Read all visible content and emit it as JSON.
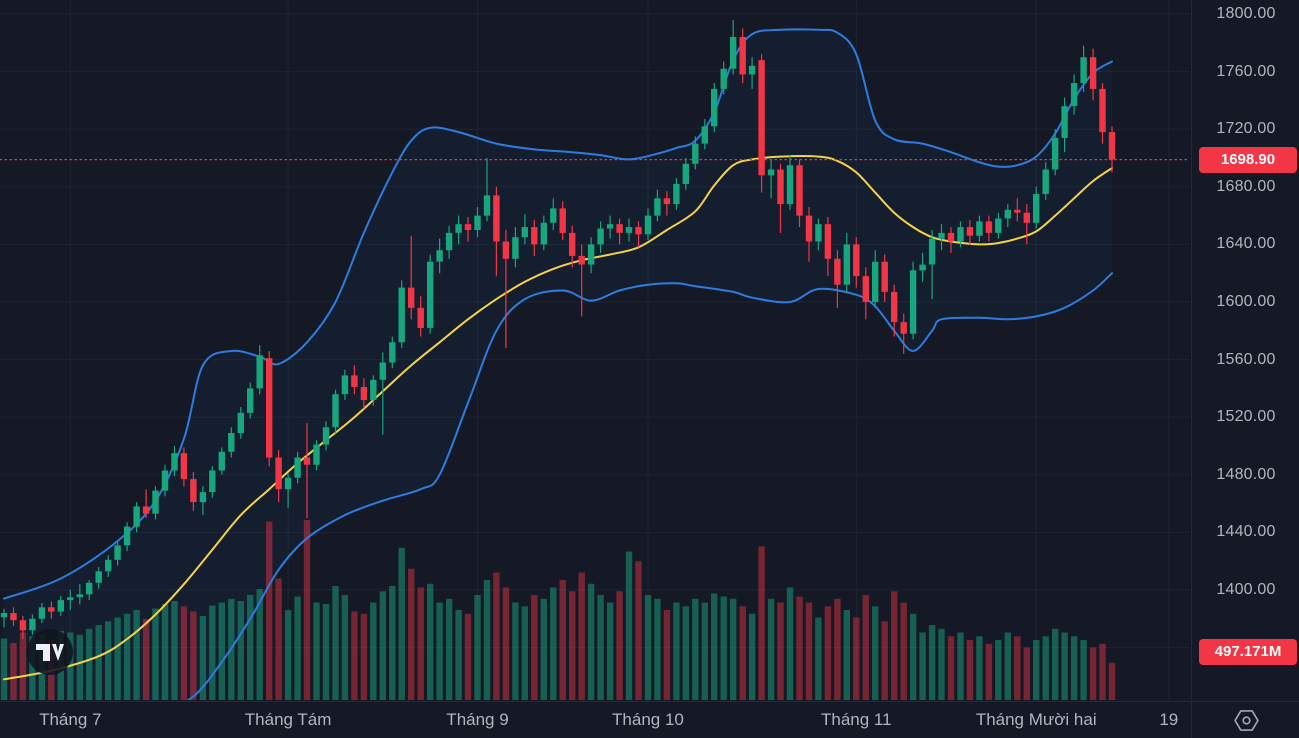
{
  "colors": {
    "background": "#141925",
    "grid": "#1d2432",
    "up": "#17a67d",
    "down": "#f23645",
    "vol_up": "rgba(23,166,125,0.5)",
    "vol_down": "rgba(242,54,69,0.45)",
    "band_line": "#2d7de1",
    "band_fill": "rgba(45,125,225,0.055)",
    "mid_line": "#f6d24b",
    "last_price_line": "#f23645",
    "axis_text": "#b2b5be",
    "badge_bg": "#f23645",
    "badge_text": "#ffffff"
  },
  "price_axis": {
    "ticks": [
      "1800.00",
      "1760.00",
      "1720.00",
      "1680.00",
      "1640.00",
      "1600.00",
      "1560.00",
      "1520.00",
      "1480.00",
      "1440.00",
      "1400.00",
      "1360.00"
    ],
    "last_price_badge": "1698.90",
    "volume_badge": "497.171M"
  },
  "time_axis": {
    "labels": [
      "Tháng 7",
      "Tháng Tám",
      "Tháng 9",
      "Tháng 10",
      "Tháng 11",
      "Tháng Mười hai",
      "19"
    ]
  },
  "logo": {
    "name": "TradingView"
  },
  "chart_data": {
    "type": "candlestick",
    "title": "",
    "ylabel": "price",
    "ylim": [
      1325,
      1810
    ],
    "y_ticks": [
      1800,
      1760,
      1720,
      1680,
      1640,
      1600,
      1560,
      1520,
      1480,
      1440,
      1400,
      1360
    ],
    "grid": true,
    "last_price": 1698.9,
    "total_volume_label": "497.171M",
    "months": [
      {
        "label": "Tháng 7",
        "bar": 7
      },
      {
        "label": "Tháng Tám",
        "bar": 30
      },
      {
        "label": "Tháng 9",
        "bar": 50
      },
      {
        "label": "Tháng 10",
        "bar": 68
      },
      {
        "label": "Tháng 11",
        "bar": 90
      },
      {
        "label": "Tháng Mười hai",
        "bar": 109
      },
      {
        "label": "19",
        "bar": 123
      }
    ],
    "series": [
      {
        "name": "candles",
        "legend": "OHLC daily candles"
      },
      {
        "name": "volume",
        "unit": "M"
      },
      {
        "name": "bollinger-upper",
        "color": "#2d7de1"
      },
      {
        "name": "bollinger-middle",
        "color": "#f6d24b"
      },
      {
        "name": "bollinger-lower",
        "color": "#2d7de1"
      }
    ],
    "candles": [
      [
        1381,
        1387,
        1374,
        1384,
        820
      ],
      [
        1384,
        1388,
        1375,
        1379,
        760
      ],
      [
        1379,
        1382,
        1366,
        1372,
        900
      ],
      [
        1372,
        1383,
        1369,
        1380,
        850
      ],
      [
        1380,
        1391,
        1377,
        1388,
        880
      ],
      [
        1388,
        1392,
        1380,
        1385,
        800
      ],
      [
        1385,
        1396,
        1382,
        1393,
        920
      ],
      [
        1393,
        1400,
        1386,
        1395,
        900
      ],
      [
        1395,
        1404,
        1390,
        1397,
        870
      ],
      [
        1397,
        1407,
        1393,
        1405,
        950
      ],
      [
        1405,
        1416,
        1401,
        1413,
        1000
      ],
      [
        1413,
        1424,
        1409,
        1421,
        1050
      ],
      [
        1421,
        1434,
        1417,
        1431,
        1100
      ],
      [
        1431,
        1447,
        1427,
        1444,
        1150
      ],
      [
        1444,
        1461,
        1440,
        1458,
        1200
      ],
      [
        1458,
        1470,
        1450,
        1453,
        1080
      ],
      [
        1453,
        1472,
        1449,
        1469,
        1220
      ],
      [
        1469,
        1487,
        1465,
        1483,
        1280
      ],
      [
        1483,
        1500,
        1479,
        1495,
        1320
      ],
      [
        1495,
        1499,
        1472,
        1477,
        1250
      ],
      [
        1477,
        1482,
        1455,
        1461,
        1180
      ],
      [
        1461,
        1472,
        1452,
        1468,
        1120
      ],
      [
        1468,
        1486,
        1464,
        1483,
        1260
      ],
      [
        1483,
        1499,
        1480,
        1496,
        1300
      ],
      [
        1496,
        1513,
        1492,
        1509,
        1350
      ],
      [
        1509,
        1527,
        1505,
        1523,
        1320
      ],
      [
        1523,
        1544,
        1519,
        1540,
        1400
      ],
      [
        1540,
        1570,
        1536,
        1563,
        1480
      ],
      [
        1561,
        1566,
        1486,
        1492,
        2380
      ],
      [
        1492,
        1497,
        1461,
        1470,
        1620
      ],
      [
        1470,
        1481,
        1457,
        1478,
        1200
      ],
      [
        1478,
        1496,
        1474,
        1492,
        1380
      ],
      [
        1492,
        1516,
        1450,
        1487,
        2400
      ],
      [
        1487,
        1504,
        1483,
        1501,
        1300
      ],
      [
        1501,
        1517,
        1497,
        1513,
        1280
      ],
      [
        1513,
        1539,
        1509,
        1536,
        1520
      ],
      [
        1536,
        1553,
        1532,
        1549,
        1400
      ],
      [
        1549,
        1556,
        1536,
        1541,
        1180
      ],
      [
        1541,
        1547,
        1526,
        1532,
        1150
      ],
      [
        1532,
        1549,
        1528,
        1546,
        1300
      ],
      [
        1546,
        1565,
        1508,
        1558,
        1450
      ],
      [
        1558,
        1576,
        1554,
        1572,
        1520
      ],
      [
        1572,
        1615,
        1568,
        1610,
        2030
      ],
      [
        1610,
        1646,
        1588,
        1596,
        1750
      ],
      [
        1596,
        1604,
        1576,
        1582,
        1500
      ],
      [
        1582,
        1633,
        1578,
        1628,
        1550
      ],
      [
        1628,
        1644,
        1620,
        1636,
        1300
      ],
      [
        1636,
        1653,
        1630,
        1648,
        1350
      ],
      [
        1648,
        1660,
        1640,
        1654,
        1200
      ],
      [
        1654,
        1659,
        1642,
        1650,
        1150
      ],
      [
        1650,
        1666,
        1645,
        1660,
        1400
      ],
      [
        1660,
        1700,
        1656,
        1674,
        1600
      ],
      [
        1674,
        1680,
        1618,
        1642,
        1700
      ],
      [
        1642,
        1650,
        1568,
        1630,
        1500
      ],
      [
        1630,
        1652,
        1624,
        1645,
        1300
      ],
      [
        1645,
        1661,
        1640,
        1652,
        1250
      ],
      [
        1652,
        1657,
        1632,
        1640,
        1400
      ],
      [
        1640,
        1660,
        1636,
        1655,
        1350
      ],
      [
        1655,
        1672,
        1650,
        1665,
        1500
      ],
      [
        1665,
        1670,
        1643,
        1648,
        1600
      ],
      [
        1648,
        1653,
        1624,
        1632,
        1450
      ],
      [
        1632,
        1640,
        1590,
        1626,
        1700
      ],
      [
        1626,
        1645,
        1620,
        1640,
        1550
      ],
      [
        1640,
        1656,
        1634,
        1651,
        1400
      ],
      [
        1651,
        1660,
        1644,
        1654,
        1300
      ],
      [
        1654,
        1658,
        1640,
        1648,
        1450
      ],
      [
        1648,
        1658,
        1642,
        1652,
        1980
      ],
      [
        1652,
        1656,
        1638,
        1647,
        1850
      ],
      [
        1647,
        1665,
        1643,
        1660,
        1400
      ],
      [
        1660,
        1678,
        1656,
        1672,
        1350
      ],
      [
        1672,
        1677,
        1660,
        1668,
        1200
      ],
      [
        1668,
        1686,
        1664,
        1682,
        1300
      ],
      [
        1682,
        1700,
        1678,
        1696,
        1250
      ],
      [
        1696,
        1715,
        1692,
        1710,
        1350
      ],
      [
        1710,
        1727,
        1706,
        1722,
        1300
      ],
      [
        1722,
        1752,
        1718,
        1748,
        1420
      ],
      [
        1748,
        1767,
        1744,
        1762,
        1380
      ],
      [
        1762,
        1796,
        1758,
        1784,
        1350
      ],
      [
        1784,
        1790,
        1752,
        1758,
        1250
      ],
      [
        1758,
        1770,
        1748,
        1764,
        1150
      ],
      [
        1768,
        1772,
        1676,
        1688,
        2050
      ],
      [
        1688,
        1699,
        1672,
        1692,
        1350
      ],
      [
        1692,
        1696,
        1648,
        1668,
        1300
      ],
      [
        1668,
        1702,
        1664,
        1695,
        1500
      ],
      [
        1695,
        1699,
        1652,
        1660,
        1380
      ],
      [
        1660,
        1666,
        1628,
        1642,
        1300
      ],
      [
        1642,
        1658,
        1636,
        1654,
        1100
      ],
      [
        1654,
        1659,
        1618,
        1630,
        1250
      ],
      [
        1630,
        1636,
        1596,
        1612,
        1350
      ],
      [
        1612,
        1648,
        1606,
        1640,
        1200
      ],
      [
        1640,
        1645,
        1610,
        1618,
        1100
      ],
      [
        1618,
        1624,
        1588,
        1600,
        1400
      ],
      [
        1600,
        1636,
        1596,
        1628,
        1250
      ],
      [
        1628,
        1633,
        1600,
        1607,
        1050
      ],
      [
        1607,
        1612,
        1576,
        1586,
        1450
      ],
      [
        1586,
        1592,
        1564,
        1578,
        1300
      ],
      [
        1578,
        1628,
        1574,
        1622,
        1150
      ],
      [
        1622,
        1634,
        1614,
        1626,
        900
      ],
      [
        1626,
        1650,
        1602,
        1644,
        1000
      ],
      [
        1644,
        1654,
        1636,
        1648,
        950
      ],
      [
        1648,
        1652,
        1634,
        1642,
        850
      ],
      [
        1642,
        1656,
        1638,
        1652,
        900
      ],
      [
        1652,
        1657,
        1640,
        1646,
        800
      ],
      [
        1646,
        1660,
        1642,
        1656,
        850
      ],
      [
        1656,
        1660,
        1642,
        1648,
        750
      ],
      [
        1648,
        1662,
        1644,
        1658,
        800
      ],
      [
        1658,
        1668,
        1652,
        1664,
        900
      ],
      [
        1664,
        1672,
        1656,
        1662,
        850
      ],
      [
        1662,
        1668,
        1640,
        1655,
        700
      ],
      [
        1655,
        1680,
        1651,
        1675,
        800
      ],
      [
        1675,
        1697,
        1671,
        1692,
        850
      ],
      [
        1692,
        1720,
        1688,
        1714,
        950
      ],
      [
        1714,
        1742,
        1704,
        1736,
        900
      ],
      [
        1736,
        1758,
        1730,
        1752,
        850
      ],
      [
        1752,
        1778,
        1746,
        1770,
        800
      ],
      [
        1770,
        1776,
        1740,
        1748,
        700
      ],
      [
        1748,
        1752,
        1710,
        1718,
        750
      ],
      [
        1718,
        1722,
        1690,
        1698.9,
        497
      ]
    ],
    "bollinger_upper": [
      [
        0,
        1394
      ],
      [
        6,
        1408
      ],
      [
        12,
        1434
      ],
      [
        16,
        1462
      ],
      [
        19,
        1505
      ],
      [
        21,
        1556
      ],
      [
        24,
        1566
      ],
      [
        27,
        1562
      ],
      [
        29,
        1557
      ],
      [
        32,
        1572
      ],
      [
        35,
        1600
      ],
      [
        38,
        1648
      ],
      [
        41,
        1690
      ],
      [
        43,
        1712
      ],
      [
        45,
        1721
      ],
      [
        48,
        1718
      ],
      [
        52,
        1710
      ],
      [
        56,
        1706
      ],
      [
        60,
        1704
      ],
      [
        63,
        1702
      ],
      [
        66,
        1699
      ],
      [
        69,
        1703
      ],
      [
        71,
        1707
      ],
      [
        73,
        1712
      ],
      [
        75,
        1732
      ],
      [
        77,
        1768
      ],
      [
        79,
        1786
      ],
      [
        82,
        1789
      ],
      [
        86,
        1789
      ],
      [
        88,
        1787
      ],
      [
        90,
        1772
      ],
      [
        92,
        1726
      ],
      [
        94,
        1713
      ],
      [
        97,
        1710
      ],
      [
        100,
        1704
      ],
      [
        103,
        1697
      ],
      [
        105,
        1694
      ],
      [
        107,
        1695
      ],
      [
        109,
        1701
      ],
      [
        111,
        1717
      ],
      [
        113,
        1741
      ],
      [
        115,
        1759
      ],
      [
        117,
        1767
      ]
    ],
    "bollinger_middle": [
      [
        0,
        1338
      ],
      [
        5,
        1344
      ],
      [
        10,
        1354
      ],
      [
        13,
        1366
      ],
      [
        16,
        1383
      ],
      [
        19,
        1404
      ],
      [
        22,
        1428
      ],
      [
        25,
        1452
      ],
      [
        28,
        1470
      ],
      [
        31,
        1488
      ],
      [
        34,
        1504
      ],
      [
        37,
        1520
      ],
      [
        40,
        1538
      ],
      [
        43,
        1556
      ],
      [
        46,
        1572
      ],
      [
        49,
        1588
      ],
      [
        52,
        1602
      ],
      [
        55,
        1614
      ],
      [
        58,
        1623
      ],
      [
        61,
        1629
      ],
      [
        64,
        1633
      ],
      [
        67,
        1638
      ],
      [
        70,
        1650
      ],
      [
        73,
        1663
      ],
      [
        75,
        1681
      ],
      [
        77,
        1695
      ],
      [
        79,
        1699
      ],
      [
        82,
        1701
      ],
      [
        86,
        1701
      ],
      [
        88,
        1698
      ],
      [
        90,
        1690
      ],
      [
        92,
        1676
      ],
      [
        94,
        1662
      ],
      [
        96,
        1652
      ],
      [
        98,
        1645
      ],
      [
        100,
        1642
      ],
      [
        103,
        1640
      ],
      [
        105,
        1641
      ],
      [
        107,
        1644
      ],
      [
        109,
        1649
      ],
      [
        111,
        1660
      ],
      [
        113,
        1672
      ],
      [
        115,
        1684
      ],
      [
        117,
        1693
      ]
    ],
    "bollinger_lower": [
      [
        0,
        1322
      ],
      [
        5,
        1320
      ],
      [
        10,
        1318
      ],
      [
        14,
        1317
      ],
      [
        17,
        1318
      ],
      [
        20,
        1326
      ],
      [
        23,
        1350
      ],
      [
        26,
        1380
      ],
      [
        29,
        1414
      ],
      [
        32,
        1436
      ],
      [
        36,
        1452
      ],
      [
        40,
        1462
      ],
      [
        44,
        1470
      ],
      [
        46,
        1480
      ],
      [
        49,
        1530
      ],
      [
        52,
        1580
      ],
      [
        55,
        1602
      ],
      [
        59,
        1608
      ],
      [
        62,
        1601
      ],
      [
        65,
        1608
      ],
      [
        68,
        1612
      ],
      [
        71,
        1613
      ],
      [
        73,
        1611
      ],
      [
        77,
        1607
      ],
      [
        79,
        1603
      ],
      [
        83,
        1600
      ],
      [
        86,
        1609
      ],
      [
        90,
        1605
      ],
      [
        92,
        1597
      ],
      [
        94,
        1580
      ],
      [
        96,
        1566
      ],
      [
        98,
        1580
      ],
      [
        99,
        1588
      ],
      [
        103,
        1589
      ],
      [
        106,
        1588
      ],
      [
        109,
        1590
      ],
      [
        112,
        1596
      ],
      [
        115,
        1608
      ],
      [
        117,
        1620
      ]
    ]
  }
}
